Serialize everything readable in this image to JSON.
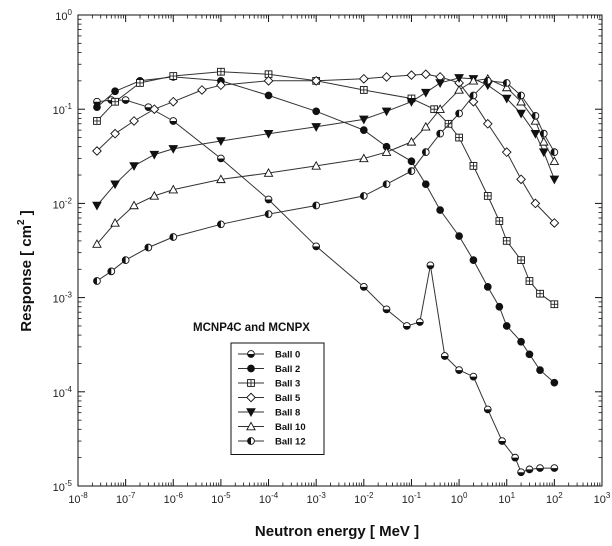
{
  "chart_data": {
    "type": "line",
    "title": "",
    "xlabel": "Neutron energy   [ MeV ]",
    "ylabel": "Response   [ cm² ]",
    "ylabel_parts": {
      "prefix": "Response   [ cm",
      "sup": "2",
      "suffix": " ]"
    },
    "xscale": "log",
    "yscale": "log",
    "xlim": [
      1e-08,
      1000
    ],
    "ylim": [
      1e-05,
      1
    ],
    "x_ticks": [
      {
        "value": 1e-08,
        "base": "10",
        "exp": "-8"
      },
      {
        "value": 1e-07,
        "base": "10",
        "exp": "-7"
      },
      {
        "value": 1e-06,
        "base": "10",
        "exp": "-6"
      },
      {
        "value": 1e-05,
        "base": "10",
        "exp": "-5"
      },
      {
        "value": 0.0001,
        "base": "10",
        "exp": "-4"
      },
      {
        "value": 0.001,
        "base": "10",
        "exp": "-3"
      },
      {
        "value": 0.01,
        "base": "10",
        "exp": "-2"
      },
      {
        "value": 0.1,
        "base": "10",
        "exp": "-1"
      },
      {
        "value": 1,
        "base": "10",
        "exp": "0"
      },
      {
        "value": 10,
        "base": "10",
        "exp": "1"
      },
      {
        "value": 100,
        "base": "10",
        "exp": "2"
      },
      {
        "value": 1000,
        "base": "10",
        "exp": "3"
      }
    ],
    "y_ticks": [
      {
        "value": 1e-05,
        "base": "10",
        "exp": "-5"
      },
      {
        "value": 0.0001,
        "base": "10",
        "exp": "-4"
      },
      {
        "value": 0.001,
        "base": "10",
        "exp": "-3"
      },
      {
        "value": 0.01,
        "base": "10",
        "exp": "-2"
      },
      {
        "value": 0.1,
        "base": "10",
        "exp": "-1"
      },
      {
        "value": 1,
        "base": "10",
        "exp": "0"
      }
    ],
    "grid": false,
    "annotation": "MCNP4C and MCNPX",
    "legend_position": "lower-center",
    "series": [
      {
        "name": "Ball  0",
        "marker": "half-circle",
        "points": [
          [
            2.5e-08,
            0.12
          ],
          [
            5e-08,
            0.125
          ],
          [
            1e-07,
            0.125
          ],
          [
            3e-07,
            0.105
          ],
          [
            1e-06,
            0.075
          ],
          [
            1e-05,
            0.03
          ],
          [
            0.0001,
            0.011
          ],
          [
            0.001,
            0.0035
          ],
          [
            0.01,
            0.0013
          ],
          [
            0.03,
            0.00075
          ],
          [
            0.08,
            0.0005
          ],
          [
            0.15,
            0.00055
          ],
          [
            0.25,
            0.0022
          ],
          [
            0.5,
            0.00024
          ],
          [
            1,
            0.00017
          ],
          [
            2,
            0.000145
          ],
          [
            4,
            6.5e-05
          ],
          [
            8,
            3e-05
          ],
          [
            15.0,
            2e-05
          ],
          [
            20.0,
            1.4e-05
          ],
          [
            30.0,
            1.5e-05
          ],
          [
            50.0,
            1.55e-05
          ],
          [
            100.0,
            1.55e-05
          ]
        ]
      },
      {
        "name": "Ball  2",
        "marker": "filled-circle",
        "points": [
          [
            2.5e-08,
            0.105
          ],
          [
            6e-08,
            0.155
          ],
          [
            2e-07,
            0.2
          ],
          [
            1e-06,
            0.22
          ],
          [
            1e-05,
            0.2
          ],
          [
            0.0001,
            0.14
          ],
          [
            0.001,
            0.095
          ],
          [
            0.01,
            0.06
          ],
          [
            0.03,
            0.04
          ],
          [
            0.1,
            0.028
          ],
          [
            0.2,
            0.016
          ],
          [
            0.4,
            0.0085
          ],
          [
            1,
            0.0045
          ],
          [
            2,
            0.0025
          ],
          [
            4,
            0.0013
          ],
          [
            7,
            0.0008
          ],
          [
            10.0,
            0.0005
          ],
          [
            20.0,
            0.00034
          ],
          [
            30.0,
            0.00025
          ],
          [
            50.0,
            0.00017
          ],
          [
            100.0,
            0.000125
          ]
        ]
      },
      {
        "name": "Ball  3",
        "marker": "boxed-plus",
        "points": [
          [
            2.5e-08,
            0.075
          ],
          [
            6e-08,
            0.12
          ],
          [
            2e-07,
            0.19
          ],
          [
            1e-06,
            0.225
          ],
          [
            1e-05,
            0.25
          ],
          [
            0.0001,
            0.235
          ],
          [
            0.001,
            0.2
          ],
          [
            0.01,
            0.16
          ],
          [
            0.1,
            0.13
          ],
          [
            0.3,
            0.1
          ],
          [
            0.6,
            0.07
          ],
          [
            1,
            0.05
          ],
          [
            2,
            0.025
          ],
          [
            4,
            0.012
          ],
          [
            7,
            0.0065
          ],
          [
            10.0,
            0.004
          ],
          [
            20.0,
            0.0025
          ],
          [
            30.0,
            0.0015
          ],
          [
            50.0,
            0.0011
          ],
          [
            100.0,
            0.00085
          ]
        ]
      },
      {
        "name": "Ball  5",
        "marker": "open-diamond",
        "points": [
          [
            2.5e-08,
            0.036
          ],
          [
            6e-08,
            0.055
          ],
          [
            1.5e-07,
            0.075
          ],
          [
            4e-07,
            0.1
          ],
          [
            1e-06,
            0.12
          ],
          [
            4e-06,
            0.16
          ],
          [
            1e-05,
            0.18
          ],
          [
            0.0001,
            0.2
          ],
          [
            0.001,
            0.2
          ],
          [
            0.01,
            0.21
          ],
          [
            0.03,
            0.22
          ],
          [
            0.1,
            0.23
          ],
          [
            0.2,
            0.235
          ],
          [
            0.4,
            0.22
          ],
          [
            1,
            0.19
          ],
          [
            2,
            0.12
          ],
          [
            4,
            0.07
          ],
          [
            10.0,
            0.035
          ],
          [
            20.0,
            0.018
          ],
          [
            40.0,
            0.01
          ],
          [
            100.0,
            0.0062
          ]
        ]
      },
      {
        "name": "Ball  8",
        "marker": "filled-triangle-down",
        "points": [
          [
            2.5e-08,
            0.0095
          ],
          [
            6e-08,
            0.016
          ],
          [
            1.5e-07,
            0.025
          ],
          [
            4e-07,
            0.033
          ],
          [
            1e-06,
            0.038
          ],
          [
            1e-05,
            0.046
          ],
          [
            0.0001,
            0.055
          ],
          [
            0.001,
            0.065
          ],
          [
            0.01,
            0.078
          ],
          [
            0.03,
            0.095
          ],
          [
            0.1,
            0.12
          ],
          [
            0.2,
            0.15
          ],
          [
            0.4,
            0.19
          ],
          [
            1,
            0.215
          ],
          [
            2,
            0.21
          ],
          [
            4,
            0.18
          ],
          [
            10.0,
            0.13
          ],
          [
            20.0,
            0.09
          ],
          [
            40.0,
            0.055
          ],
          [
            60.0,
            0.035
          ],
          [
            100.0,
            0.018
          ]
        ]
      },
      {
        "name": "Ball 10",
        "marker": "open-triangle-up",
        "points": [
          [
            2.5e-08,
            0.0037
          ],
          [
            6e-08,
            0.0062
          ],
          [
            1.5e-07,
            0.0095
          ],
          [
            4e-07,
            0.012
          ],
          [
            1e-06,
            0.014
          ],
          [
            1e-05,
            0.018
          ],
          [
            0.0001,
            0.021
          ],
          [
            0.001,
            0.025
          ],
          [
            0.01,
            0.03
          ],
          [
            0.03,
            0.035
          ],
          [
            0.1,
            0.045
          ],
          [
            0.2,
            0.065
          ],
          [
            0.4,
            0.1
          ],
          [
            1,
            0.16
          ],
          [
            2,
            0.2
          ],
          [
            4,
            0.21
          ],
          [
            10.0,
            0.17
          ],
          [
            20.0,
            0.12
          ],
          [
            40.0,
            0.075
          ],
          [
            60.0,
            0.045
          ],
          [
            100.0,
            0.028
          ]
        ]
      },
      {
        "name": "Ball 12",
        "marker": "half-circle-alt",
        "points": [
          [
            2.5e-08,
            0.0015
          ],
          [
            5e-08,
            0.0019
          ],
          [
            1e-07,
            0.0025
          ],
          [
            3e-07,
            0.0034
          ],
          [
            1e-06,
            0.0044
          ],
          [
            1e-05,
            0.006
          ],
          [
            0.0001,
            0.0077
          ],
          [
            0.001,
            0.0095
          ],
          [
            0.01,
            0.012
          ],
          [
            0.03,
            0.016
          ],
          [
            0.1,
            0.022
          ],
          [
            0.2,
            0.035
          ],
          [
            0.4,
            0.055
          ],
          [
            1,
            0.09
          ],
          [
            2,
            0.14
          ],
          [
            4,
            0.2
          ],
          [
            10.0,
            0.19
          ],
          [
            20.0,
            0.14
          ],
          [
            40.0,
            0.085
          ],
          [
            60.0,
            0.055
          ],
          [
            100.0,
            0.035
          ]
        ]
      }
    ]
  }
}
